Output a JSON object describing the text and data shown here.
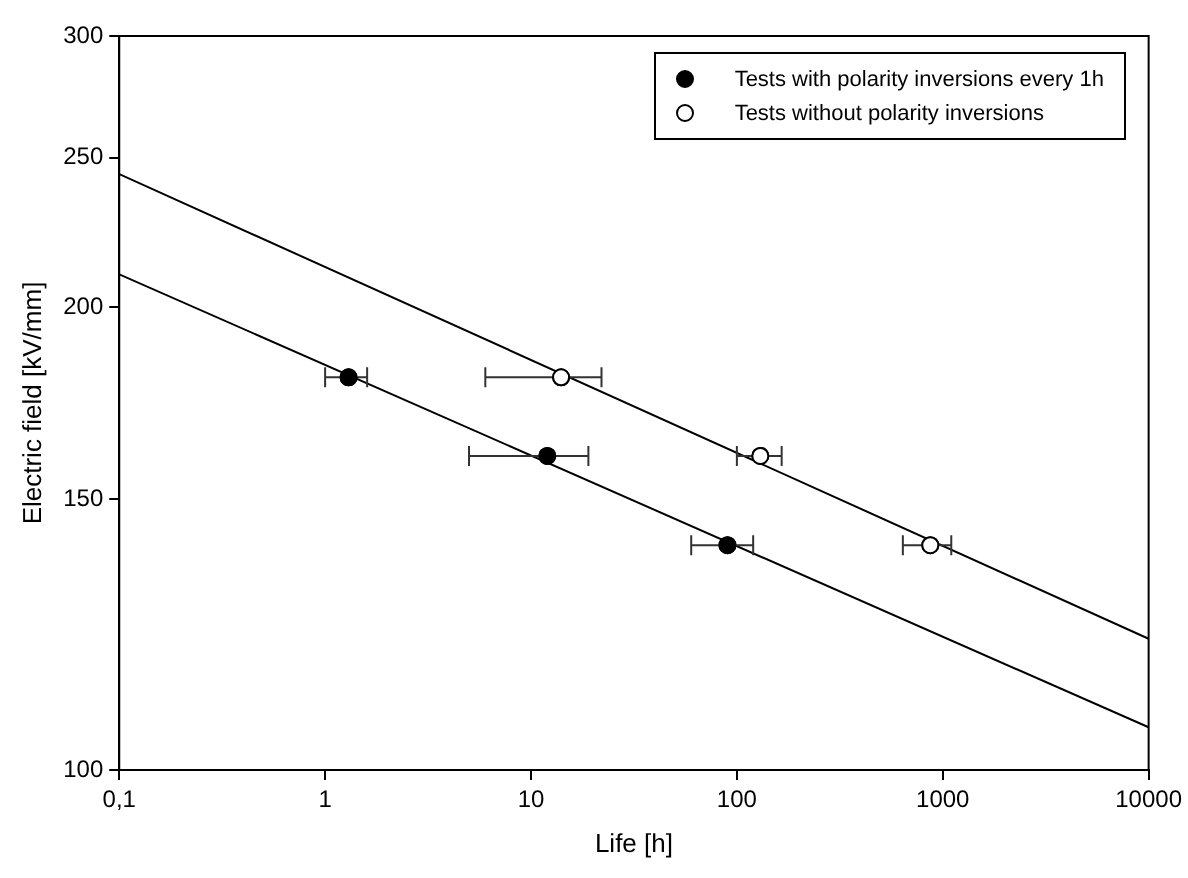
{
  "chart_data": {
    "type": "scatter",
    "xlabel": "Life [h]",
    "ylabel": "Electric field [kV/mm]",
    "log": "xy",
    "grid": false,
    "legend": "top right",
    "xlim": [
      0.1,
      10000
    ],
    "xticks": [
      {
        "value": 0.1,
        "label": "0,1"
      },
      1,
      10,
      100,
      1000,
      10000
    ],
    "ylim": [
      100,
      300
    ],
    "yticks": [
      100,
      150,
      200,
      250,
      300
    ],
    "series": [
      {
        "name": "Tests with polarity inversions every 1h",
        "color": "#000000",
        "marker": "circle",
        "x": [
          1.3,
          12,
          90
        ],
        "values": [
          180,
          160,
          140
        ],
        "xerrors": [
          [
            1.0,
            1.6
          ],
          [
            5,
            19
          ],
          [
            60,
            120
          ]
        ]
      },
      {
        "name": "Tests without polarity inversions",
        "color": "#ffffff",
        "marker": "circle",
        "x": [
          14,
          130,
          870
        ],
        "values": [
          180,
          160,
          140
        ],
        "xerrors": [
          [
            6,
            22
          ],
          [
            100,
            165
          ],
          [
            640,
            1100
          ]
        ]
      },
      {
        "type": "line",
        "color": "#000000",
        "x": [
          0.1,
          10000
        ],
        "values": [
          210,
          106.6
        ],
        "marker": "none"
      },
      {
        "type": "line",
        "color": "#000000",
        "x": [
          0.1,
          10000
        ],
        "values": [
          244,
          121.7
        ],
        "marker": "none"
      }
    ]
  }
}
